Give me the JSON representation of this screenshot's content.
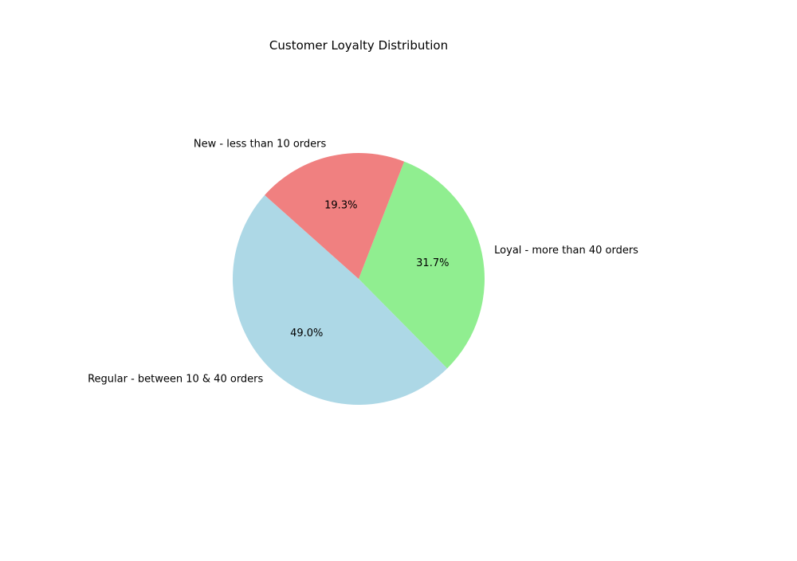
{
  "chart_data": {
    "type": "pie",
    "title": "Customer Loyalty Distribution",
    "slices": [
      {
        "label": "Loyal - more than 40 orders",
        "value": 31.7,
        "pct_label": "31.7%",
        "color": "#90ee90"
      },
      {
        "label": "Regular - between 10 & 40 orders",
        "value": 49.0,
        "pct_label": "49.0%",
        "color": "#add8e6"
      },
      {
        "label": "New - less than 10 orders",
        "value": 19.3,
        "pct_label": "19.3%",
        "color": "#f08080"
      }
    ],
    "legend": "none"
  }
}
